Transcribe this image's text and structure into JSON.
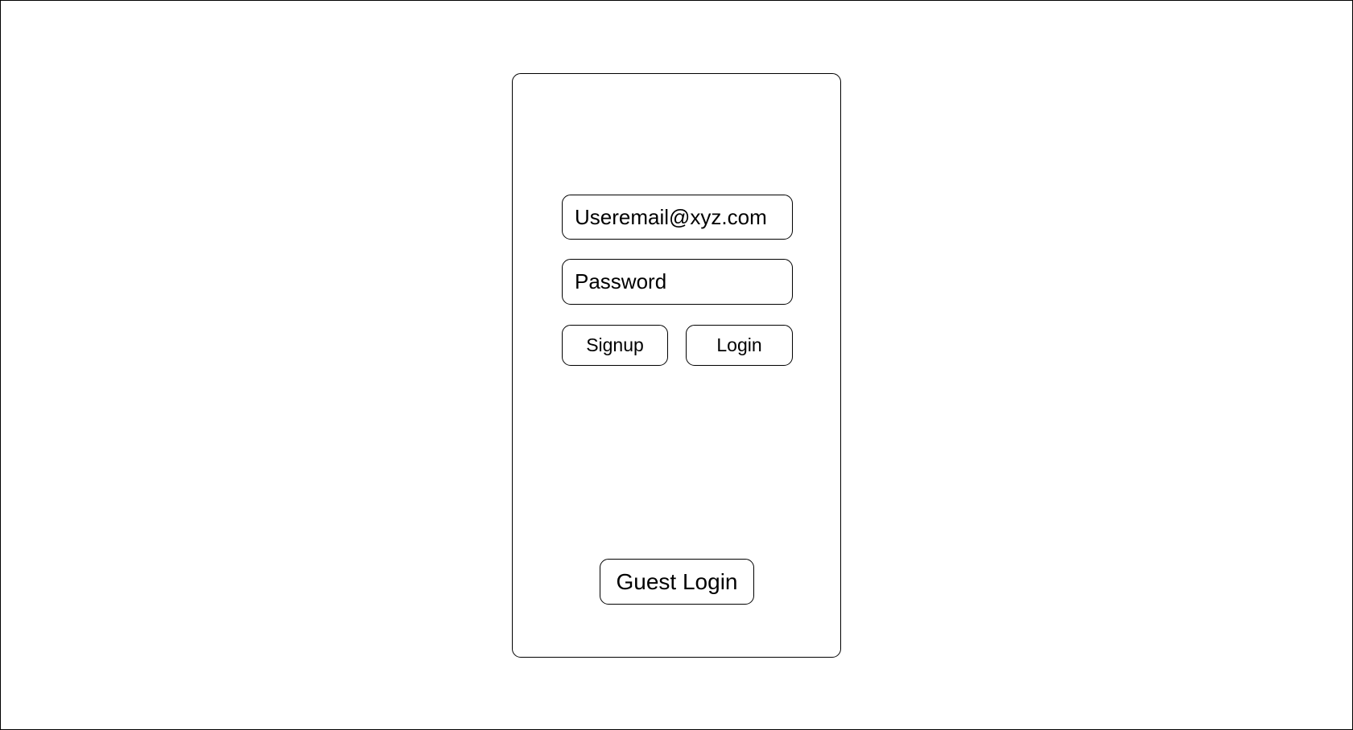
{
  "login_form": {
    "email_value": "Useremail@xyz.com",
    "password_placeholder": "Password",
    "signup_label": "Signup",
    "login_label": "Login",
    "guest_login_label": "Guest Login"
  }
}
